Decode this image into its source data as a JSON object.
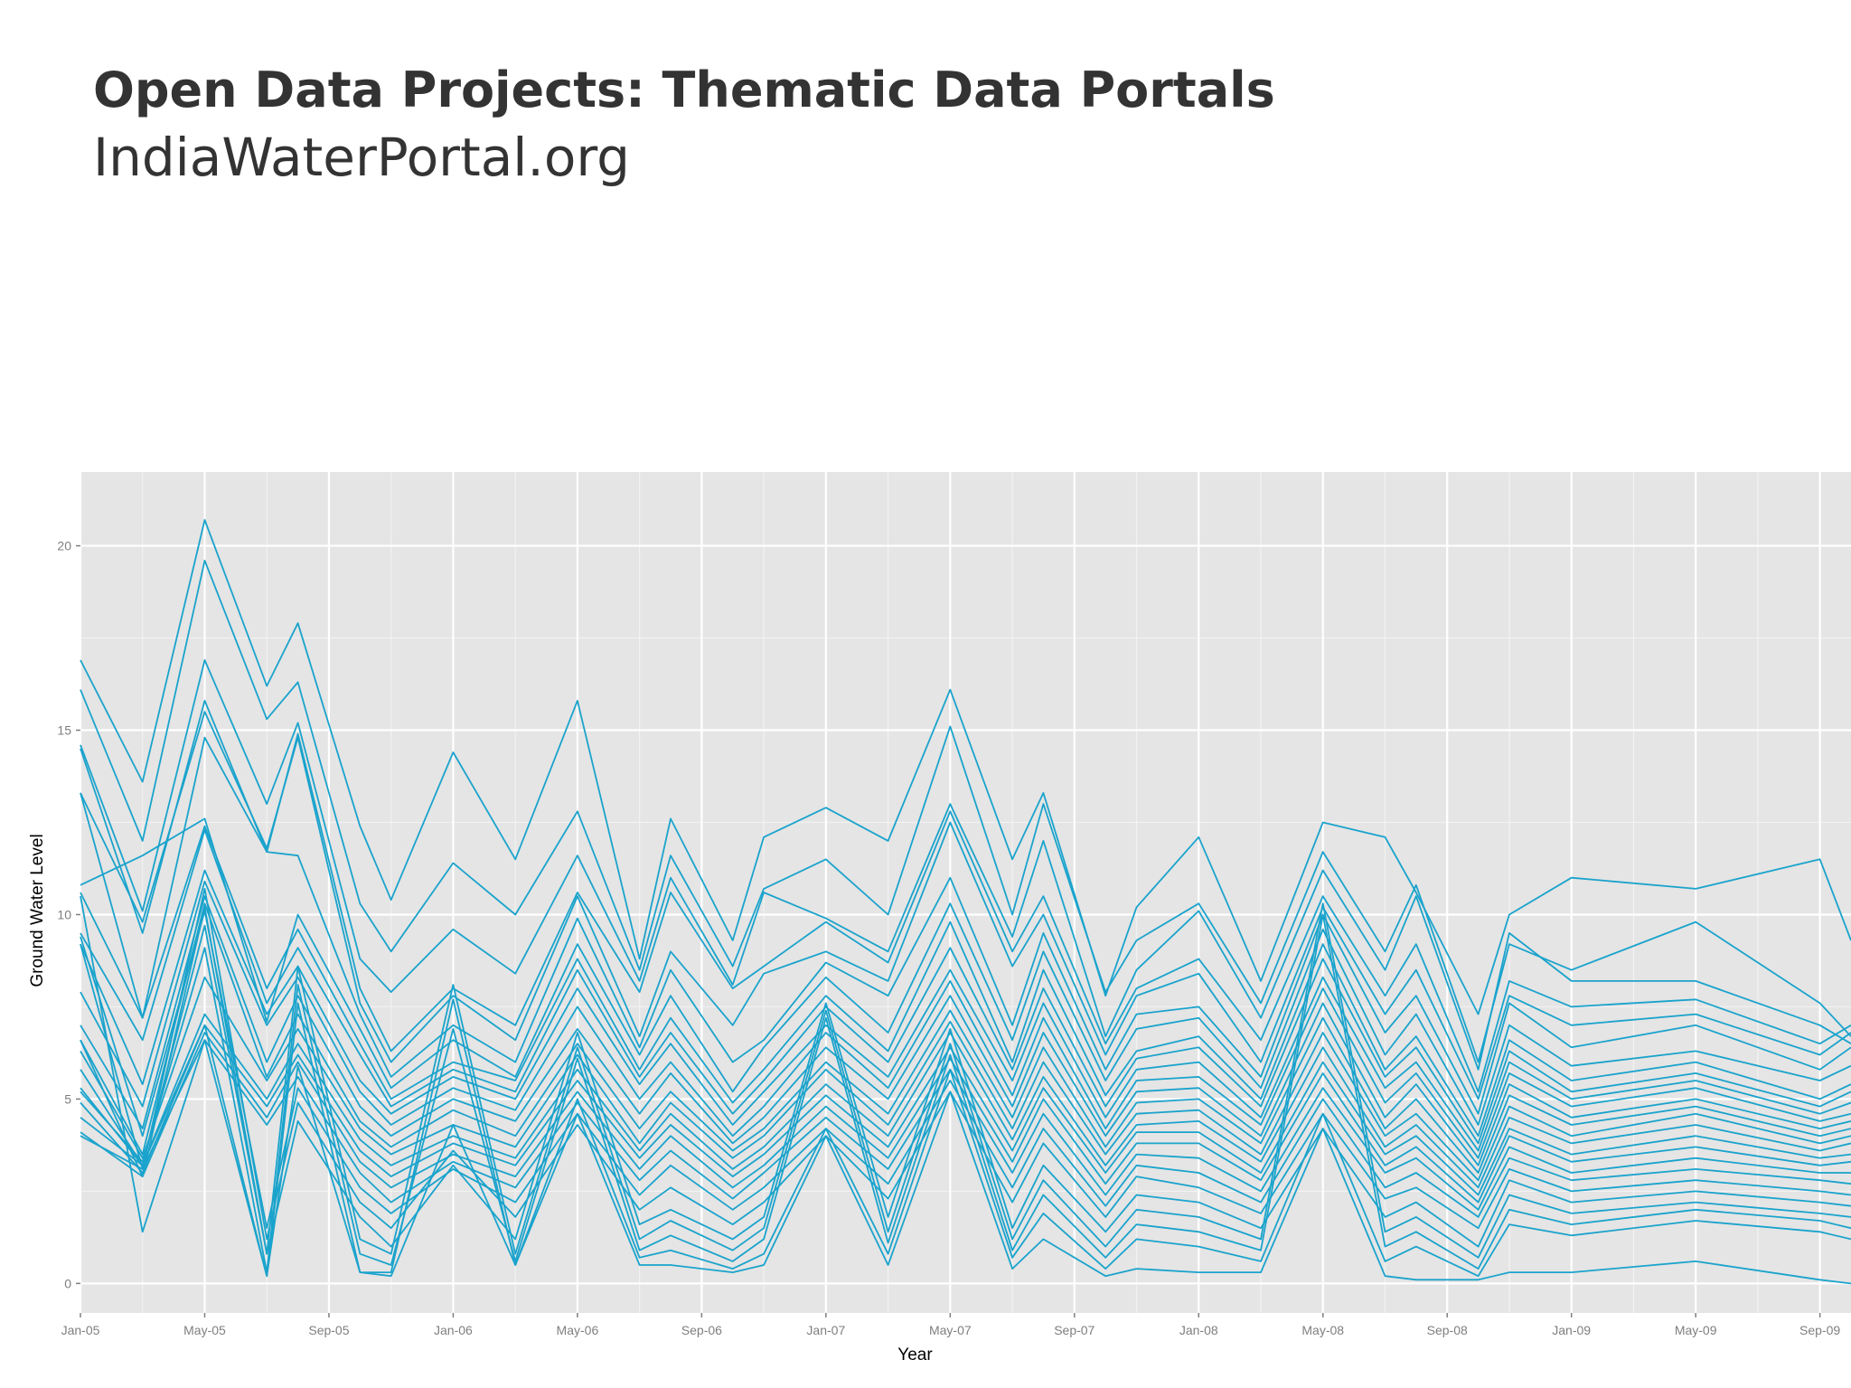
{
  "slide": {
    "title": "Open Data Projects: Thematic Data Portals",
    "subtitle": "IndiaWaterPortal.org"
  },
  "chart_data": {
    "type": "line",
    "xlabel": "Year",
    "ylabel": "Ground Water Level",
    "xlim": [
      "2005-01",
      "2009-10"
    ],
    "ylim": [
      -0.8,
      22
    ],
    "x_ticks": [
      "Jan-05",
      "May-05",
      "Sep-05",
      "Jan-06",
      "May-06",
      "Sep-06",
      "Jan-07",
      "May-07",
      "Sep-07",
      "Jan-08",
      "May-08",
      "Sep-08",
      "Jan-09",
      "May-09",
      "Sep-09"
    ],
    "y_ticks": [
      0,
      5,
      10,
      15,
      20
    ],
    "grid": true,
    "legend": "none",
    "line_color": "#1aa3cc",
    "panel_color": "#e5e5e5",
    "x": [
      "2005-01",
      "2005-03",
      "2005-05",
      "2005-07",
      "2005-08",
      "2005-10",
      "2005-11",
      "2006-01",
      "2006-03",
      "2006-05",
      "2006-07",
      "2006-08",
      "2006-10",
      "2006-11",
      "2007-01",
      "2007-03",
      "2007-05",
      "2007-07",
      "2007-08",
      "2007-10",
      "2007-11",
      "2008-01",
      "2008-03",
      "2008-05",
      "2008-07",
      "2008-08",
      "2008-10",
      "2008-11",
      "2009-01",
      "2009-05",
      "2009-09",
      "2009-10"
    ],
    "series": [
      {
        "values": [
          16.9,
          13.6,
          20.7,
          16.2,
          17.9,
          12.4,
          10.4,
          14.4,
          11.5,
          15.8,
          8.8,
          12.6,
          9.3,
          12.1,
          12.9,
          12.0,
          16.1,
          11.5,
          13.3,
          7.8,
          10.2,
          12.1,
          8.2,
          12.5,
          12.1,
          10.6,
          7.3,
          10.0,
          11.0,
          10.7,
          11.5,
          9.3
        ]
      },
      {
        "values": [
          16.1,
          12.0,
          19.6,
          15.3,
          16.3,
          10.3,
          9.0,
          11.4,
          10.0,
          12.8,
          8.5,
          11.6,
          8.6,
          10.7,
          11.5,
          10.0,
          15.1,
          10.0,
          13.0,
          7.9,
          9.3,
          10.3,
          7.6,
          11.7,
          9.0,
          10.8,
          6.0,
          9.2,
          8.5,
          9.8,
          7.6,
          6.7
        ]
      },
      {
        "values": [
          14.6,
          10.1,
          16.9,
          13.0,
          15.2,
          8.8,
          7.9,
          9.6,
          8.4,
          11.6,
          8.2,
          11.0,
          8.1,
          10.6,
          9.9,
          9.0,
          13.0,
          9.4,
          12.0,
          6.7,
          8.5,
          10.1,
          7.2,
          11.2,
          8.5,
          10.5,
          5.8,
          9.5,
          8.2,
          8.2,
          7.0,
          6.5
        ]
      },
      {
        "values": [
          14.5,
          9.5,
          15.8,
          11.7,
          14.9,
          8.0,
          6.3,
          8.0,
          7.0,
          10.6,
          7.9,
          10.6,
          8.0,
          8.6,
          9.8,
          8.7,
          12.8,
          9.0,
          10.5,
          6.5,
          8.0,
          8.8,
          6.6,
          10.5,
          7.8,
          9.2,
          5.2,
          8.2,
          7.5,
          7.7,
          6.5,
          7.0
        ]
      },
      {
        "values": [
          13.3,
          9.8,
          15.5,
          11.8,
          14.8,
          7.6,
          6.0,
          7.8,
          6.6,
          10.5,
          6.7,
          9.0,
          7.0,
          8.4,
          9.0,
          8.2,
          12.5,
          8.6,
          10.0,
          6.2,
          7.8,
          8.4,
          6.0,
          10.2,
          7.3,
          8.5,
          5.0,
          7.8,
          7.0,
          7.3,
          6.2,
          6.8
        ]
      },
      {
        "values": [
          13.3,
          7.2,
          14.8,
          11.7,
          11.6,
          7.3,
          5.6,
          7.0,
          6.0,
          9.9,
          6.4,
          8.5,
          6.0,
          6.6,
          8.7,
          7.8,
          11.0,
          7.0,
          9.5,
          5.8,
          7.3,
          7.5,
          5.6,
          10.0,
          6.8,
          7.8,
          4.6,
          7.6,
          6.4,
          7.0,
          5.8,
          6.4
        ]
      },
      {
        "values": [
          10.8,
          11.6,
          12.6,
          7.1,
          10.0,
          6.9,
          5.3,
          6.6,
          5.6,
          9.2,
          6.2,
          7.8,
          5.2,
          6.4,
          8.3,
          6.8,
          10.3,
          6.6,
          9.0,
          5.5,
          6.9,
          7.2,
          5.3,
          9.6,
          6.2,
          7.3,
          4.3,
          7.0,
          5.9,
          6.3,
          5.5,
          5.9
        ]
      },
      {
        "values": [
          10.6,
          7.2,
          12.4,
          8.0,
          9.6,
          6.5,
          5.0,
          6.0,
          5.5,
          8.8,
          5.8,
          7.2,
          4.9,
          5.8,
          7.8,
          6.3,
          9.8,
          6.0,
          8.5,
          5.1,
          6.3,
          6.7,
          5.0,
          9.2,
          5.8,
          6.7,
          4.0,
          6.6,
          5.5,
          6.0,
          5.0,
          5.4
        ]
      },
      {
        "values": [
          9.5,
          6.6,
          12.3,
          7.6,
          9.1,
          6.2,
          4.8,
          5.8,
          5.2,
          8.5,
          5.6,
          6.8,
          4.6,
          5.5,
          7.5,
          6.0,
          9.1,
          5.8,
          8.0,
          4.8,
          6.1,
          6.4,
          4.8,
          8.8,
          5.6,
          6.4,
          3.8,
          6.3,
          5.2,
          5.7,
          4.8,
          5.2
        ]
      },
      {
        "values": [
          9.2,
          5.4,
          11.2,
          7.3,
          8.6,
          5.5,
          4.6,
          5.6,
          5.0,
          8.0,
          5.4,
          6.5,
          4.3,
          5.2,
          7.0,
          5.6,
          8.5,
          5.5,
          7.6,
          4.5,
          5.8,
          6.0,
          4.5,
          8.3,
          5.3,
          6.0,
          3.6,
          6.0,
          5.0,
          5.5,
          4.6,
          4.9
        ]
      },
      {
        "values": [
          7.9,
          4.8,
          10.9,
          7.0,
          8.3,
          5.2,
          4.3,
          5.3,
          4.7,
          7.5,
          5.0,
          6.0,
          4.0,
          4.8,
          6.8,
          5.3,
          8.2,
          5.1,
          7.2,
          4.2,
          5.5,
          5.6,
          4.3,
          8.0,
          4.9,
          5.7,
          3.4,
          5.7,
          4.8,
          5.3,
          4.4,
          4.6
        ]
      },
      {
        "values": [
          7.0,
          4.2,
          10.5,
          6.0,
          7.8,
          4.8,
          4.0,
          5.0,
          4.4,
          6.9,
          4.6,
          5.7,
          3.8,
          4.5,
          6.4,
          5.0,
          7.8,
          4.8,
          6.8,
          4.0,
          5.2,
          5.3,
          4.0,
          7.6,
          4.5,
          5.4,
          3.2,
          5.4,
          4.5,
          5.0,
          4.2,
          4.4
        ]
      },
      {
        "values": [
          6.6,
          3.5,
          10.3,
          5.6,
          7.3,
          4.4,
          3.7,
          4.7,
          4.0,
          6.5,
          4.2,
          5.2,
          3.6,
          4.2,
          6.0,
          4.6,
          7.4,
          4.5,
          6.4,
          3.7,
          4.9,
          5.0,
          3.8,
          7.2,
          4.2,
          5.0,
          3.0,
          5.1,
          4.3,
          4.8,
          4.0,
          4.2
        ]
      },
      {
        "values": [
          6.3,
          3.4,
          8.3,
          5.5,
          6.9,
          4.2,
          3.5,
          4.3,
          3.7,
          6.2,
          3.8,
          4.9,
          3.4,
          4.0,
          5.8,
          4.3,
          7.1,
          4.2,
          6.0,
          3.5,
          4.6,
          4.7,
          3.5,
          6.8,
          4.0,
          4.6,
          2.8,
          4.8,
          4.0,
          4.6,
          3.8,
          4.0
        ]
      },
      {
        "values": [
          5.3,
          3.2,
          7.3,
          5.0,
          6.5,
          3.9,
          3.2,
          4.0,
          3.4,
          5.8,
          3.6,
          4.6,
          3.1,
          3.7,
          5.4,
          4.0,
          6.8,
          3.9,
          5.6,
          3.2,
          4.3,
          4.4,
          3.3,
          6.4,
          3.7,
          4.3,
          2.6,
          4.5,
          3.8,
          4.3,
          3.6,
          3.8
        ]
      },
      {
        "values": [
          4.9,
          3.0,
          7.0,
          4.8,
          6.2,
          3.6,
          2.9,
          3.8,
          3.2,
          5.5,
          3.4,
          4.3,
          2.9,
          3.5,
          5.1,
          3.7,
          6.4,
          3.6,
          5.3,
          3.0,
          4.1,
          4.1,
          3.0,
          6.0,
          3.5,
          4.0,
          2.4,
          4.2,
          3.5,
          4.0,
          3.4,
          3.5
        ]
      },
      {
        "values": [
          4.1,
          2.9,
          6.8,
          4.5,
          6.0,
          3.3,
          2.6,
          3.5,
          2.9,
          5.2,
          3.1,
          4.0,
          2.6,
          3.2,
          4.8,
          3.4,
          6.1,
          3.3,
          5.0,
          2.7,
          3.8,
          3.8,
          2.8,
          5.7,
          3.2,
          3.7,
          2.2,
          4.0,
          3.3,
          3.7,
          3.2,
          3.3
        ]
      },
      {
        "values": [
          10.5,
          1.4,
          6.6,
          4.3,
          5.6,
          3.0,
          2.2,
          3.3,
          2.6,
          4.9,
          2.8,
          3.6,
          2.3,
          3.0,
          4.5,
          3.1,
          5.8,
          3.0,
          4.6,
          2.4,
          3.5,
          3.4,
          2.5,
          5.3,
          3.0,
          3.4,
          2.0,
          3.7,
          3.0,
          3.4,
          3.0,
          3.0
        ]
      },
      {
        "values": [
          9.4,
          4.0,
          10.1,
          1.5,
          5.3,
          2.6,
          1.9,
          3.1,
          2.2,
          4.6,
          2.4,
          3.2,
          2.0,
          2.6,
          4.2,
          2.7,
          5.5,
          2.6,
          4.2,
          2.1,
          3.2,
          3.0,
          2.2,
          5.0,
          2.6,
          3.0,
          1.8,
          3.4,
          2.8,
          3.1,
          2.8,
          2.7
        ]
      },
      {
        "values": [
          9.2,
          3.1,
          10.7,
          1.2,
          4.9,
          2.2,
          1.5,
          3.6,
          1.8,
          4.3,
          2.0,
          2.6,
          1.6,
          2.2,
          4.0,
          2.3,
          5.2,
          2.2,
          3.8,
          1.8,
          2.9,
          2.6,
          1.9,
          4.6,
          2.3,
          2.6,
          1.5,
          3.1,
          2.5,
          2.8,
          2.5,
          2.4
        ]
      },
      {
        "values": [
          6.6,
          2.9,
          10.2,
          0.8,
          4.4,
          1.8,
          1.0,
          3.2,
          1.2,
          6.8,
          1.6,
          2.0,
          1.2,
          1.8,
          7.6,
          1.8,
          6.9,
          1.5,
          3.2,
          1.4,
          2.4,
          2.2,
          1.5,
          4.2,
          1.8,
          2.2,
          1.0,
          2.8,
          2.2,
          2.5,
          2.2,
          2.1
        ]
      },
      {
        "values": [
          5.8,
          3.2,
          9.7,
          0.8,
          8.6,
          1.2,
          0.8,
          8.1,
          0.8,
          6.4,
          1.2,
          1.7,
          0.9,
          1.5,
          7.4,
          1.4,
          6.5,
          1.2,
          2.8,
          1.0,
          2.0,
          1.8,
          1.2,
          10.3,
          1.4,
          1.8,
          0.7,
          2.4,
          1.9,
          2.2,
          1.9,
          1.8
        ]
      },
      {
        "values": [
          5.2,
          3.3,
          9.1,
          0.3,
          8.1,
          0.8,
          0.5,
          6.9,
          0.6,
          6.1,
          0.9,
          1.3,
          0.6,
          1.2,
          7.2,
          1.1,
          6.2,
          0.9,
          2.4,
          0.7,
          1.6,
          1.4,
          0.9,
          10.0,
          1.0,
          1.4,
          0.4,
          2.0,
          1.6,
          2.0,
          1.7,
          1.5
        ]
      },
      {
        "values": [
          4.5,
          3.2,
          7.0,
          0.2,
          7.6,
          0.3,
          0.3,
          7.7,
          0.5,
          5.0,
          0.7,
          0.9,
          0.4,
          0.8,
          4.2,
          0.8,
          5.8,
          0.7,
          1.9,
          0.4,
          1.2,
          1.0,
          0.6,
          4.6,
          0.6,
          1.0,
          0.2,
          1.6,
          1.3,
          1.7,
          1.4,
          1.2
        ]
      },
      {
        "values": [
          4.0,
          3.1,
          6.6,
          0.2,
          5.9,
          0.3,
          0.2,
          4.3,
          0.5,
          4.6,
          0.5,
          0.5,
          0.3,
          0.5,
          4.0,
          0.5,
          5.2,
          0.4,
          1.2,
          0.2,
          0.4,
          0.3,
          0.3,
          4.2,
          0.2,
          0.1,
          0.1,
          0.3,
          0.3,
          0.6,
          0.1,
          0.0
        ]
      }
    ]
  }
}
